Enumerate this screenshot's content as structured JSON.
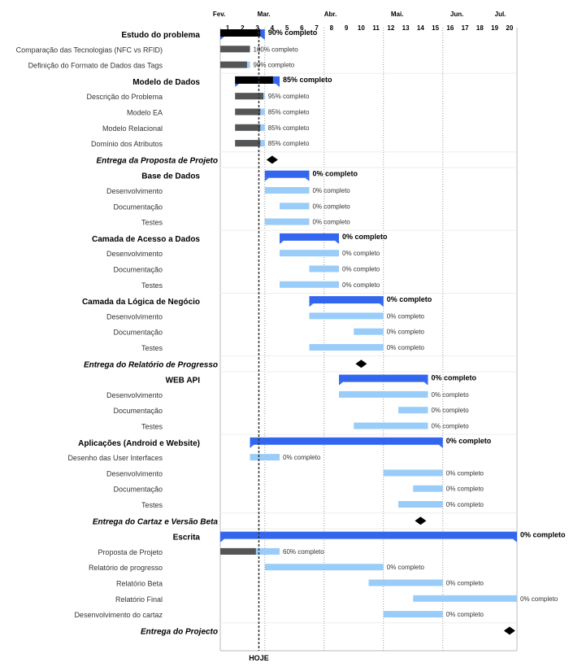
{
  "chart_data": {
    "type": "gantt",
    "today_label": "HOJE",
    "today_week": 3.6,
    "week_ticks": [
      "1",
      "2",
      "3",
      "4",
      "5",
      "6",
      "7",
      "8",
      "9",
      "10",
      "11",
      "12",
      "13",
      "14",
      "15",
      "16",
      "17",
      "18",
      "19",
      "20"
    ],
    "months": [
      {
        "label": "Fev.",
        "week": 0.5
      },
      {
        "label": "Mar.",
        "week": 3.5
      },
      {
        "label": "Abr.",
        "week": 8
      },
      {
        "label": "Mai.",
        "week": 12.5
      },
      {
        "label": "Jun.",
        "week": 16.5
      },
      {
        "label": "Jul.",
        "week": 19.5
      }
    ],
    "month_boundaries": [
      4,
      8,
      12,
      16
    ],
    "colors": {
      "summary_bar": "#3366ee",
      "task_bar": "#99ccf8",
      "progress": "#555555",
      "summary_progress": "#000000",
      "milestone": "#000000",
      "today_line": "#333333"
    },
    "rows": [
      {
        "kind": "group",
        "label": "Estudo do problema",
        "start": 1,
        "end": 3,
        "pct_label": "90% completo",
        "progress": 0.9
      },
      {
        "kind": "task",
        "label": "Comparação das Tecnologias (NFC vs RFID)",
        "start": 1,
        "end": 2,
        "pct_label": "100% completo",
        "progress": 1.0
      },
      {
        "kind": "task",
        "label": "Definição do Formato de Dados das Tags",
        "start": 1,
        "end": 2,
        "pct_label": "90% completo",
        "progress": 0.9
      },
      {
        "kind": "group",
        "label": "Modelo de Dados",
        "start": 2,
        "end": 4,
        "pct_label": "85% completo",
        "progress": 0.85
      },
      {
        "kind": "task",
        "label": "Descrição do Problema",
        "start": 2,
        "end": 3,
        "pct_label": "95% completo",
        "progress": 0.95
      },
      {
        "kind": "task",
        "label": "Modelo EA",
        "start": 2,
        "end": 3,
        "pct_label": "85% completo",
        "progress": 0.85
      },
      {
        "kind": "task",
        "label": "Modelo Relacional",
        "start": 2,
        "end": 3,
        "pct_label": "85% completo",
        "progress": 0.85
      },
      {
        "kind": "task",
        "label": "Domínio dos Atributos",
        "start": 2,
        "end": 3,
        "pct_label": "85% completo",
        "progress": 0.85
      },
      {
        "kind": "milestone",
        "label": "Entrega da Proposta de Projeto",
        "week": 5
      },
      {
        "kind": "group",
        "label": "Base de Dados",
        "start": 4,
        "end": 6,
        "pct_label": "0% completo",
        "progress": 0
      },
      {
        "kind": "task",
        "label": "Desenvolvimento",
        "start": 4,
        "end": 6,
        "pct_label": "0% completo",
        "progress": 0
      },
      {
        "kind": "task",
        "label": "Documentação",
        "start": 5,
        "end": 6,
        "pct_label": "0% completo",
        "progress": 0
      },
      {
        "kind": "task",
        "label": "Testes",
        "start": 4,
        "end": 6,
        "pct_label": "0% completo",
        "progress": 0
      },
      {
        "kind": "group",
        "label": "Camada de Acesso a Dados",
        "start": 5,
        "end": 8,
        "pct_label": "0% completo",
        "progress": 0
      },
      {
        "kind": "task",
        "label": "Desenvolvimento",
        "start": 5,
        "end": 8,
        "pct_label": "0% completo",
        "progress": 0
      },
      {
        "kind": "task",
        "label": "Documentação",
        "start": 7,
        "end": 8,
        "pct_label": "0% completo",
        "progress": 0
      },
      {
        "kind": "task",
        "label": "Testes",
        "start": 5,
        "end": 8,
        "pct_label": "0% completo",
        "progress": 0
      },
      {
        "kind": "group",
        "label": "Camada da Lógica de Negócio",
        "start": 7,
        "end": 11,
        "pct_label": "0% completo",
        "progress": 0
      },
      {
        "kind": "task",
        "label": "Desenvolvimento",
        "start": 7,
        "end": 11,
        "pct_label": "0% completo",
        "progress": 0
      },
      {
        "kind": "task",
        "label": "Documentação",
        "start": 10,
        "end": 11,
        "pct_label": "0% completo",
        "progress": 0
      },
      {
        "kind": "task",
        "label": "Testes",
        "start": 7,
        "end": 11,
        "pct_label": "0% completo",
        "progress": 0
      },
      {
        "kind": "milestone",
        "label": "Entrega do Relatório de Progresso",
        "week": 11
      },
      {
        "kind": "group",
        "label": "WEB API",
        "start": 9,
        "end": 14,
        "pct_label": "0% completo",
        "progress": 0
      },
      {
        "kind": "task",
        "label": "Desenvolvimento",
        "start": 9,
        "end": 14,
        "pct_label": "0% completo",
        "progress": 0
      },
      {
        "kind": "task",
        "label": "Documentação",
        "start": 13,
        "end": 14,
        "pct_label": "0% completo",
        "progress": 0
      },
      {
        "kind": "task",
        "label": "Testes",
        "start": 10,
        "end": 14,
        "pct_label": "0% completo",
        "progress": 0
      },
      {
        "kind": "group",
        "label": "Aplicações (Android e Website)",
        "start": 3,
        "end": 15,
        "pct_label": "0% completo",
        "progress": 0
      },
      {
        "kind": "task",
        "label": "Desenho das User Interfaces",
        "start": 3,
        "end": 4,
        "pct_label": "0% completo",
        "progress": 0
      },
      {
        "kind": "task",
        "label": "Desenvolvimento",
        "start": 12,
        "end": 15,
        "pct_label": "0% completo",
        "progress": 0
      },
      {
        "kind": "task",
        "label": "Documentação",
        "start": 14,
        "end": 15,
        "pct_label": "0% completo",
        "progress": 0
      },
      {
        "kind": "task",
        "label": "Testes",
        "start": 13,
        "end": 15,
        "pct_label": "0% completo",
        "progress": 0
      },
      {
        "kind": "milestone",
        "label": "Entrega do Cartaz e Versão Beta",
        "week": 15
      },
      {
        "kind": "group",
        "label": "Escrita",
        "start": 1,
        "end": 20,
        "pct_label": "0% completo",
        "progress": 0
      },
      {
        "kind": "task",
        "label": "Proposta de Projeto",
        "start": 1,
        "end": 4,
        "pct_label": "60% completo",
        "progress": 0.6
      },
      {
        "kind": "task",
        "label": "Relatório de progresso",
        "start": 4,
        "end": 11,
        "pct_label": "0% completo",
        "progress": 0
      },
      {
        "kind": "task",
        "label": "Relatório Beta",
        "start": 11,
        "end": 15,
        "pct_label": "0% completo",
        "progress": 0
      },
      {
        "kind": "task",
        "label": "Relatório Final",
        "start": 14,
        "end": 20,
        "pct_label": "0% completo",
        "progress": 0
      },
      {
        "kind": "task",
        "label": "Desenvolvimento do cartaz",
        "start": 12,
        "end": 15,
        "pct_label": "0% completo",
        "progress": 0
      },
      {
        "kind": "milestone",
        "label": "Entrega do Projecto",
        "week": 21
      }
    ]
  }
}
